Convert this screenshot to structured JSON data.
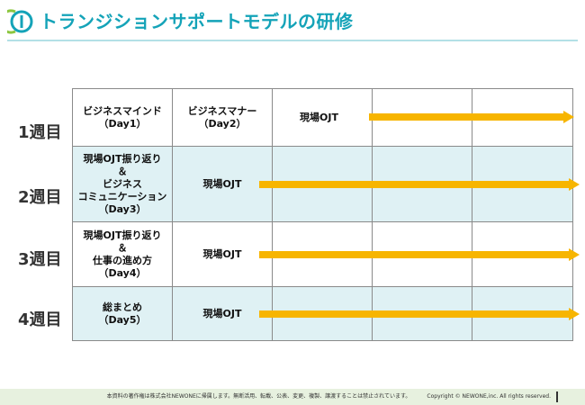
{
  "header": {
    "title": "トランジションサポートモデルの研修",
    "logo_icon": "circle-i-logo-icon",
    "accent_color": "#14a3b8",
    "logo_green": "#8cc63f"
  },
  "weeks": [
    {
      "label": "1週目"
    },
    {
      "label": "2週目"
    },
    {
      "label": "3週目"
    },
    {
      "label": "4週目"
    }
  ],
  "schedule": {
    "row1": {
      "cell1": [
        "ビジネスマインド",
        "（Day1）"
      ],
      "cell2": [
        "ビジネスマナー",
        "（Day2）"
      ],
      "ojt": "現場OJT"
    },
    "row2": {
      "cell1": [
        "現場OJT振り返り",
        "＆",
        "ビジネス",
        "コミュニケーション",
        "（Day3）"
      ],
      "ojt": "現場OJT"
    },
    "row3": {
      "cell1": [
        "現場OJT振り返り",
        "＆",
        "仕事の進め方",
        "（Day4）"
      ],
      "ojt": "現場OJT"
    },
    "row4": {
      "cell1": [
        "総まとめ",
        "（Day5）"
      ],
      "ojt": "現場OJT"
    }
  },
  "arrow_color": "#f7b500",
  "footer": {
    "notice": "本資料の著作権は株式会社NEWONEに帰属します。無断活用、転載、公表、変更、複製、譲渡することは禁止されています。",
    "copyright": "Copyright © NEWONE,inc. All rights reserved."
  }
}
